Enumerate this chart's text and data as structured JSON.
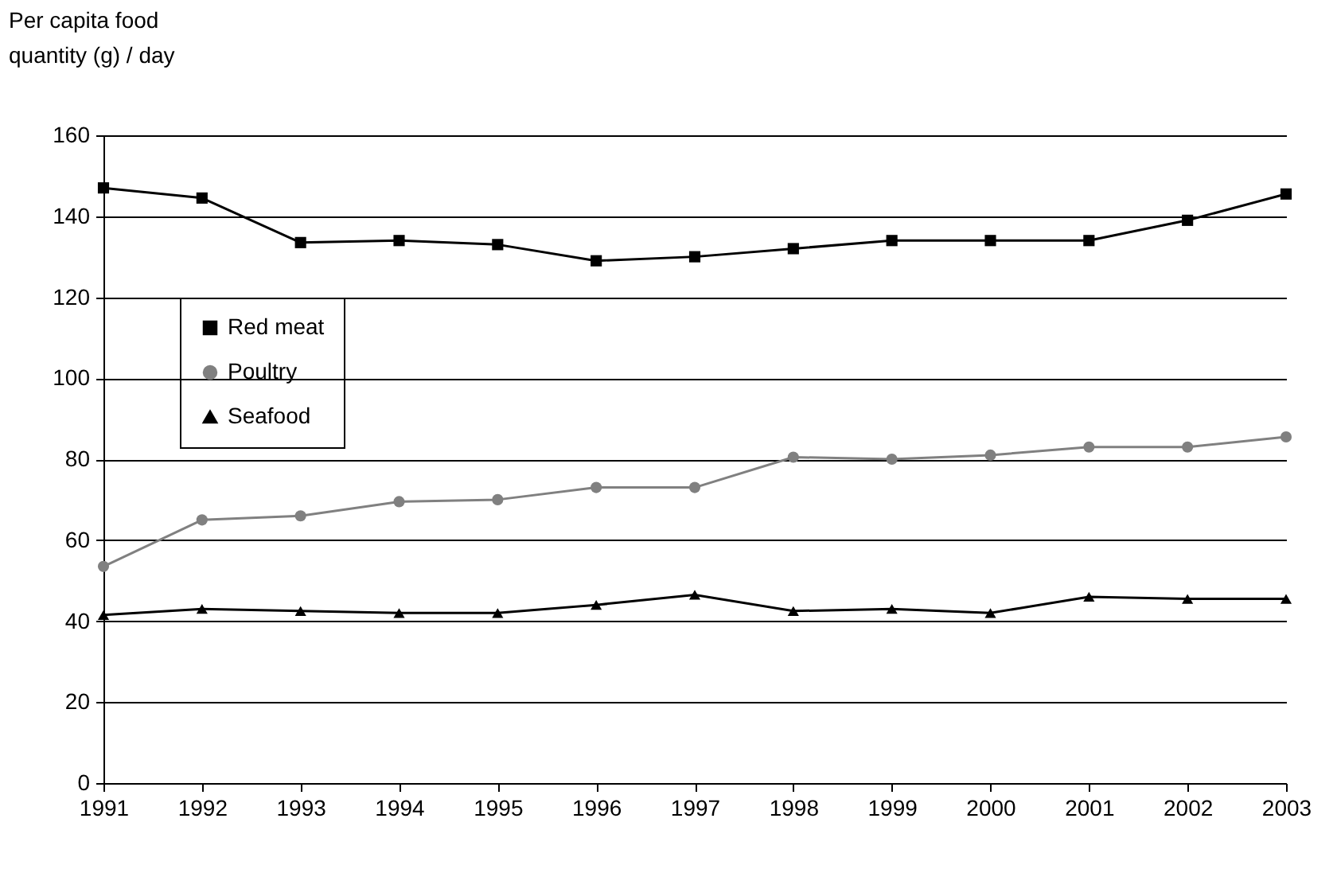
{
  "chart_data": {
    "type": "line",
    "ylabel": "Per capita food quantity (g) / day",
    "x": [
      1991,
      1992,
      1993,
      1994,
      1995,
      1996,
      1997,
      1998,
      1999,
      2000,
      2001,
      2002,
      2003
    ],
    "series": [
      {
        "name": "Red meat",
        "color": "#000000",
        "marker": "square",
        "values": [
          147,
          144.5,
          133.5,
          134,
          133,
          129,
          130,
          132,
          134,
          134,
          134,
          139,
          145.5
        ]
      },
      {
        "name": "Poultry",
        "color": "#808080",
        "marker": "circle",
        "values": [
          53.5,
          65,
          66,
          69.5,
          70,
          73,
          73,
          80.5,
          80,
          81,
          83,
          83,
          85.5
        ]
      },
      {
        "name": "Seafood",
        "color": "#000000",
        "marker": "triangle",
        "values": [
          41.5,
          43,
          42.5,
          42,
          42,
          44,
          46.5,
          42.5,
          43,
          42,
          46,
          45.5,
          45.5
        ]
      }
    ],
    "xlim": [
      1991,
      2003
    ],
    "xticks": [
      1991,
      1992,
      1993,
      1994,
      1995,
      1996,
      1997,
      1998,
      1999,
      2000,
      2001,
      2002,
      2003
    ],
    "ylim": [
      0,
      160
    ],
    "yticks": [
      0,
      20,
      40,
      60,
      80,
      100,
      120,
      140,
      160
    ],
    "grid": "y",
    "legend": "top left",
    "line_style": "solid"
  }
}
